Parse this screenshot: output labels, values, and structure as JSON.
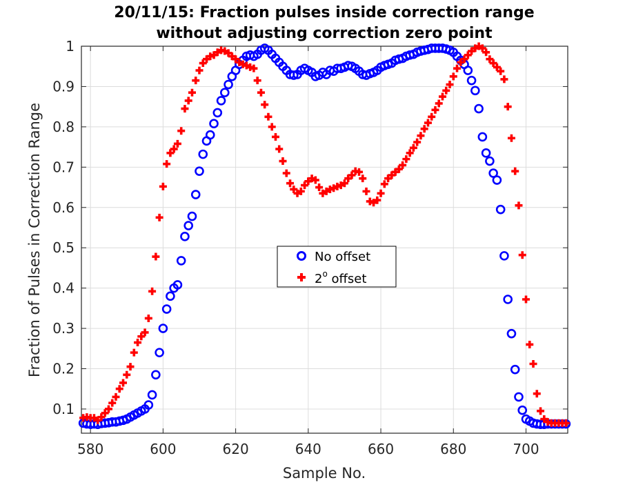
{
  "chart_data": {
    "type": "scatter",
    "title_line1": "20/11/15: Fraction pulses inside correction range",
    "title_line2": "without adjusting correction zero point",
    "xlabel": "Sample No.",
    "ylabel": "Fraction of Pulses in Correction Range",
    "xlim": [
      577.5,
      711.5
    ],
    "ylim": [
      0.04,
      1.0
    ],
    "xticks": [
      580,
      600,
      620,
      640,
      660,
      680,
      700
    ],
    "yticks": [
      0.1,
      0.2,
      0.3,
      0.4,
      0.5,
      0.6,
      0.7,
      0.8,
      0.9,
      1.0
    ],
    "xtick_labels": [
      "580",
      "600",
      "620",
      "640",
      "660",
      "680",
      "700"
    ],
    "ytick_labels": [
      "0.1",
      "0.2",
      "0.3",
      "0.4",
      "0.5",
      "0.6",
      "0.7",
      "0.8",
      "0.9",
      "1"
    ],
    "grid": true,
    "legend_position": "center",
    "legend": {
      "no_offset_label": "No offset",
      "offset_label_main": "2",
      "offset_label_sup": "o",
      "offset_label_rest": " offset"
    },
    "series": [
      {
        "name": "No offset",
        "marker": "circle",
        "color": "#0000ff",
        "x": [
          578,
          579,
          580,
          581,
          582,
          583,
          584,
          585,
          586,
          587,
          588,
          589,
          590,
          591,
          592,
          593,
          594,
          595,
          596,
          597,
          598,
          599,
          600,
          601,
          602,
          603,
          604,
          605,
          606,
          607,
          608,
          609,
          610,
          611,
          612,
          613,
          614,
          615,
          616,
          617,
          618,
          619,
          620,
          621,
          622,
          623,
          624,
          625,
          626,
          627,
          628,
          629,
          630,
          631,
          632,
          633,
          634,
          635,
          636,
          637,
          638,
          639,
          640,
          641,
          642,
          643,
          644,
          645,
          646,
          647,
          648,
          649,
          650,
          651,
          652,
          653,
          654,
          655,
          656,
          657,
          658,
          659,
          660,
          661,
          662,
          663,
          664,
          665,
          666,
          667,
          668,
          669,
          670,
          671,
          672,
          673,
          674,
          675,
          676,
          677,
          678,
          679,
          680,
          681,
          682,
          683,
          684,
          685,
          686,
          687,
          688,
          689,
          690,
          691,
          692,
          693,
          694,
          695,
          696,
          697,
          698,
          699,
          700,
          701,
          702,
          703,
          704,
          705,
          706,
          707,
          708,
          709,
          710,
          711
        ],
        "values": [
          0.065,
          0.063,
          0.062,
          0.063,
          0.062,
          0.064,
          0.065,
          0.066,
          0.068,
          0.068,
          0.07,
          0.072,
          0.075,
          0.08,
          0.085,
          0.09,
          0.095,
          0.1,
          0.11,
          0.135,
          0.185,
          0.24,
          0.3,
          0.348,
          0.38,
          0.4,
          0.408,
          0.468,
          0.528,
          0.555,
          0.578,
          0.632,
          0.69,
          0.732,
          0.765,
          0.78,
          0.808,
          0.835,
          0.865,
          0.885,
          0.905,
          0.925,
          0.94,
          0.955,
          0.965,
          0.975,
          0.978,
          0.975,
          0.98,
          0.99,
          0.995,
          0.99,
          0.98,
          0.97,
          0.96,
          0.95,
          0.94,
          0.93,
          0.928,
          0.93,
          0.94,
          0.945,
          0.94,
          0.935,
          0.925,
          0.928,
          0.935,
          0.93,
          0.94,
          0.938,
          0.945,
          0.945,
          0.948,
          0.952,
          0.95,
          0.945,
          0.938,
          0.93,
          0.928,
          0.932,
          0.935,
          0.94,
          0.948,
          0.952,
          0.955,
          0.958,
          0.965,
          0.968,
          0.97,
          0.975,
          0.978,
          0.98,
          0.985,
          0.988,
          0.99,
          0.992,
          0.995,
          0.995,
          0.995,
          0.995,
          0.993,
          0.99,
          0.985,
          0.975,
          0.965,
          0.955,
          0.94,
          0.915,
          0.89,
          0.845,
          0.775,
          0.735,
          0.715,
          0.685,
          0.668,
          0.595,
          0.48,
          0.372,
          0.287,
          0.198,
          0.13,
          0.097,
          0.075,
          0.07,
          0.065,
          0.063,
          0.062,
          0.062,
          0.063,
          0.063,
          0.063,
          0.063,
          0.063,
          0.063
        ]
      },
      {
        "name": "2° offset",
        "marker": "plus",
        "color": "#ff0000",
        "x": [
          578,
          579,
          580,
          581,
          582,
          583,
          584,
          585,
          586,
          587,
          588,
          589,
          590,
          591,
          592,
          593,
          594,
          595,
          596,
          597,
          598,
          599,
          600,
          601,
          602,
          603,
          604,
          605,
          606,
          607,
          608,
          609,
          610,
          611,
          612,
          613,
          614,
          615,
          616,
          617,
          618,
          619,
          620,
          621,
          622,
          623,
          624,
          625,
          626,
          627,
          628,
          629,
          630,
          631,
          632,
          633,
          634,
          635,
          636,
          637,
          638,
          639,
          640,
          641,
          642,
          643,
          644,
          645,
          646,
          647,
          648,
          649,
          650,
          651,
          652,
          653,
          654,
          655,
          656,
          657,
          658,
          659,
          660,
          661,
          662,
          663,
          664,
          665,
          666,
          667,
          668,
          669,
          670,
          671,
          672,
          673,
          674,
          675,
          676,
          677,
          678,
          679,
          680,
          681,
          682,
          683,
          684,
          685,
          686,
          687,
          688,
          689,
          690,
          691,
          692,
          693,
          694,
          695,
          696,
          697,
          698,
          699,
          700,
          701,
          702,
          703,
          704,
          705,
          706,
          707,
          708,
          709,
          710,
          711
        ],
        "values": [
          0.078,
          0.08,
          0.078,
          0.078,
          0.072,
          0.08,
          0.09,
          0.1,
          0.115,
          0.13,
          0.15,
          0.165,
          0.185,
          0.205,
          0.24,
          0.265,
          0.28,
          0.29,
          0.325,
          0.392,
          0.478,
          0.575,
          0.652,
          0.708,
          0.735,
          0.745,
          0.758,
          0.79,
          0.845,
          0.865,
          0.885,
          0.915,
          0.94,
          0.958,
          0.968,
          0.975,
          0.978,
          0.985,
          0.99,
          0.988,
          0.983,
          0.975,
          0.968,
          0.96,
          0.955,
          0.952,
          0.948,
          0.945,
          0.915,
          0.885,
          0.855,
          0.825,
          0.8,
          0.775,
          0.745,
          0.715,
          0.685,
          0.66,
          0.645,
          0.635,
          0.64,
          0.655,
          0.665,
          0.672,
          0.668,
          0.65,
          0.635,
          0.64,
          0.645,
          0.648,
          0.652,
          0.655,
          0.66,
          0.672,
          0.68,
          0.69,
          0.688,
          0.672,
          0.64,
          0.615,
          0.612,
          0.618,
          0.635,
          0.658,
          0.672,
          0.68,
          0.688,
          0.695,
          0.705,
          0.72,
          0.735,
          0.748,
          0.762,
          0.778,
          0.795,
          0.81,
          0.825,
          0.842,
          0.858,
          0.875,
          0.89,
          0.905,
          0.925,
          0.945,
          0.96,
          0.968,
          0.978,
          0.988,
          0.995,
          1.0,
          0.995,
          0.985,
          0.968,
          0.958,
          0.948,
          0.938,
          0.918,
          0.85,
          0.772,
          0.69,
          0.605,
          0.482,
          0.372,
          0.26,
          0.212,
          0.138,
          0.095,
          0.075,
          0.068,
          0.065,
          0.065,
          0.065,
          0.065,
          0.065
        ]
      }
    ]
  }
}
